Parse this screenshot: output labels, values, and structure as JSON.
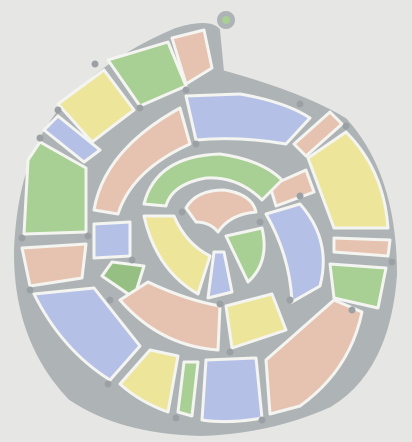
{
  "image": {
    "subject": "spiral-mosaic-drawing",
    "background_color": "#e6e6e4",
    "lead_color": "#aeb3b6",
    "outline_color": "#f4f4f1",
    "palette": {
      "green": "#a8cf94",
      "peach": "#e5c3b0",
      "yellow": "#ece59a",
      "blue": "#b5c0e6",
      "dark_green": "#96c083"
    }
  }
}
